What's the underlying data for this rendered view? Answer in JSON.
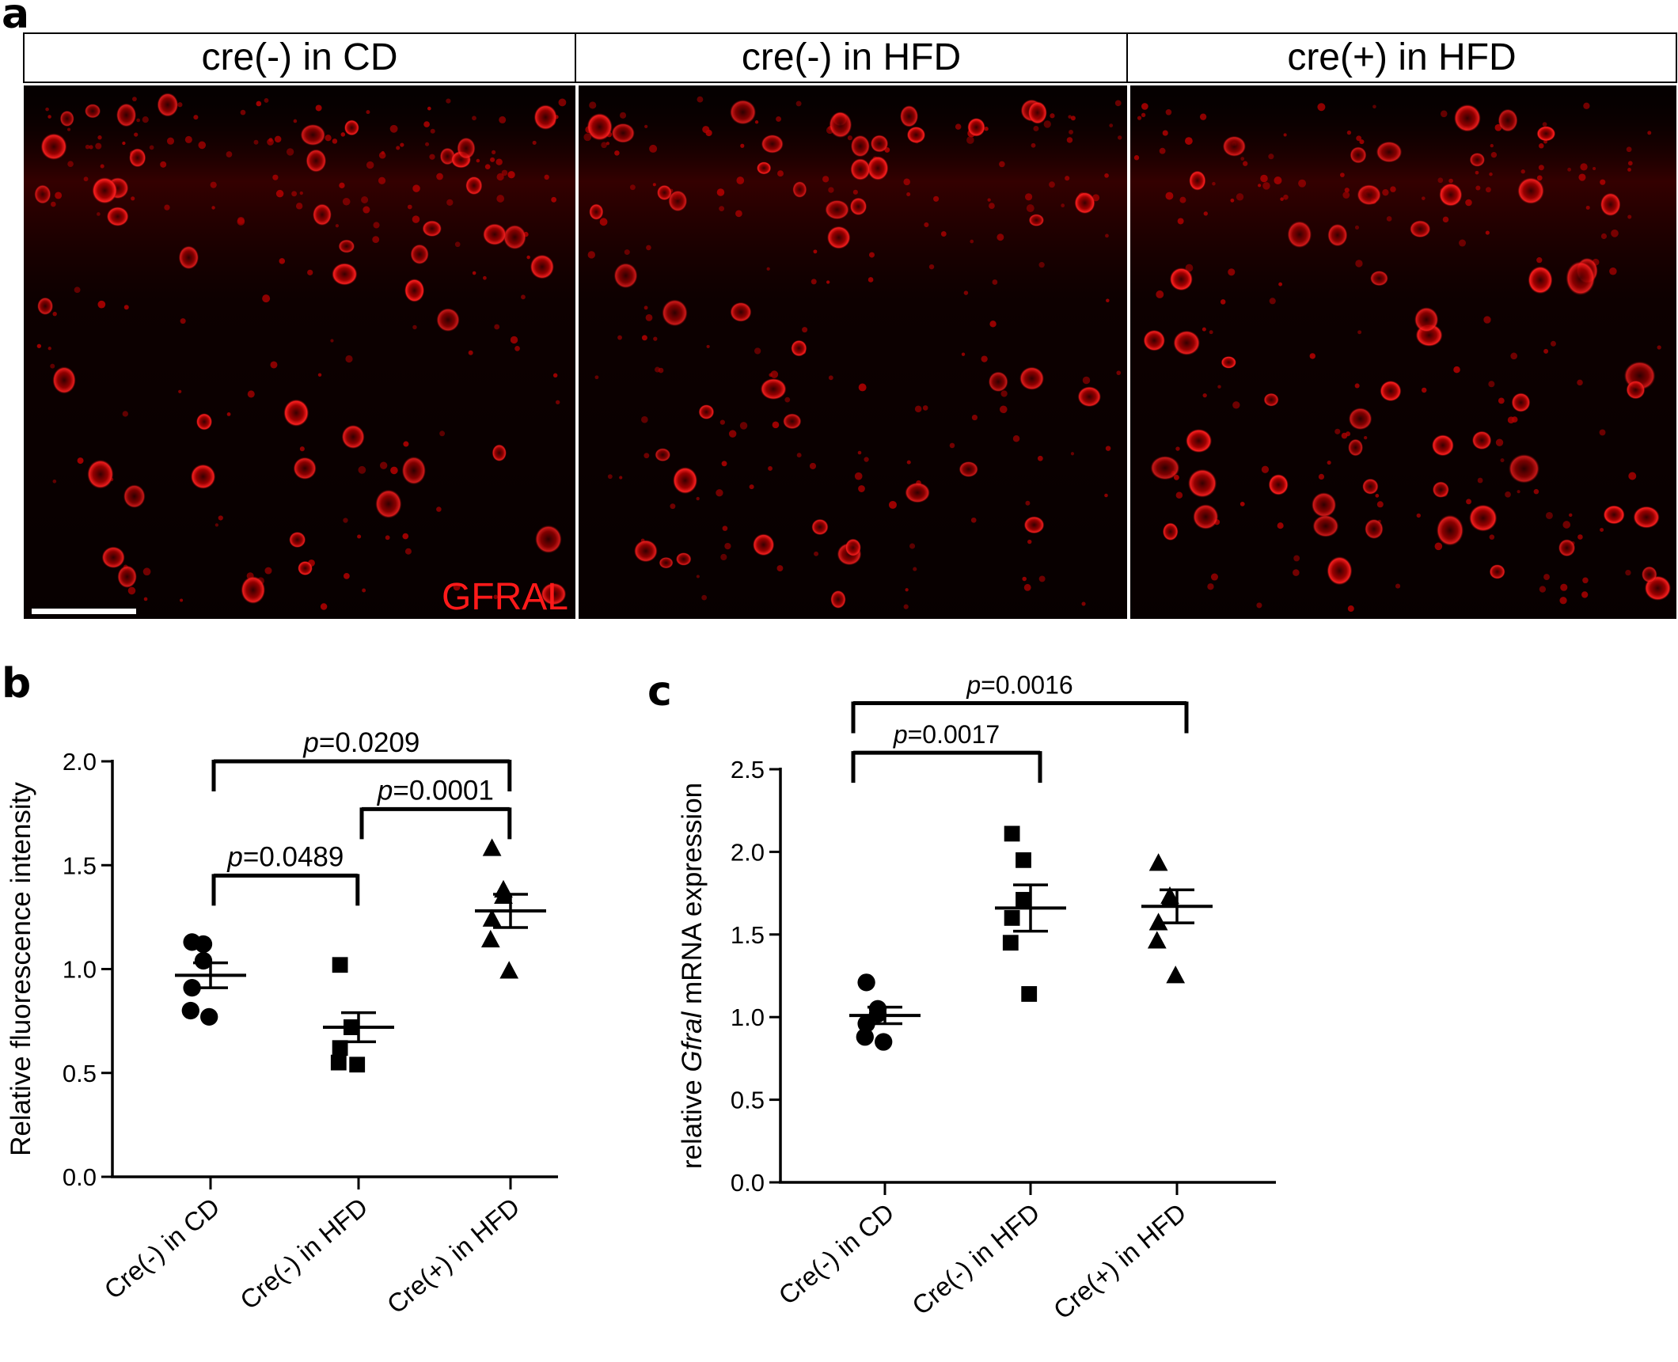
{
  "figure": {
    "panel_a_letter": "a",
    "panel_b_letter": "b",
    "panel_c_letter": "c"
  },
  "micrographs": {
    "stain_label": "GFRAL",
    "stain_color": "#ff1a1a",
    "headers": [
      "cre(-) in CD",
      "cre(-) in HFD",
      "cre(+) in HFD"
    ]
  },
  "chart_data": [
    {
      "type": "scatter",
      "panel": "b",
      "title": "",
      "ylabel": "Relative fluorescence intensity",
      "xlabel": "",
      "ylim": [
        0,
        2.0
      ],
      "yticks": [
        0.0,
        0.5,
        1.0,
        1.5,
        2.0
      ],
      "ytick_labels": [
        "0.0",
        "0.5",
        "1.0",
        "1.5",
        "2.0"
      ],
      "categories": [
        "Cre(-) in CD",
        "Cre(-) in HFD",
        "Cre(+) in HFD"
      ],
      "series": [
        {
          "marker": "circle",
          "values": [
            1.13,
            1.12,
            1.04,
            0.91,
            0.8,
            0.77
          ],
          "mean": 0.97,
          "sem": 0.06
        },
        {
          "marker": "square",
          "values": [
            1.02,
            0.72,
            0.72,
            0.62,
            0.55,
            0.54
          ],
          "mean": 0.72,
          "sem": 0.07
        },
        {
          "marker": "triangle",
          "values": [
            1.58,
            1.38,
            1.35,
            1.24,
            1.14,
            0.99
          ],
          "mean": 1.28,
          "sem": 0.08
        }
      ],
      "comparisons": [
        {
          "from": 0,
          "to": 2,
          "y": 2.0,
          "p_prefix": "p",
          "p_value": "=0.0209"
        },
        {
          "from": 1,
          "to": 2,
          "y": 1.77,
          "p_prefix": "p",
          "p_value": "=0.0001"
        },
        {
          "from": 0,
          "to": 1,
          "y": 1.45,
          "p_prefix": "p",
          "p_value": "=0.0489"
        }
      ]
    },
    {
      "type": "scatter",
      "panel": "c",
      "title": "",
      "ylabel_pre": "relative ",
      "ylabel_gene": "Gfral",
      "ylabel_post": " mRNA expression",
      "xlabel": "",
      "ylim": [
        0,
        2.5
      ],
      "yticks": [
        0.0,
        0.5,
        1.0,
        1.5,
        2.0,
        2.5
      ],
      "ytick_labels": [
        "0.0",
        "0.5",
        "1.0",
        "1.5",
        "2.0",
        "2.5"
      ],
      "categories": [
        "Cre(-) in CD",
        "Cre(-) in HFD",
        "Cre(+) in HFD"
      ],
      "series": [
        {
          "marker": "circle",
          "values": [
            1.21,
            1.05,
            1.02,
            0.96,
            0.88,
            0.85
          ],
          "mean": 1.01,
          "sem": 0.05
        },
        {
          "marker": "square",
          "values": [
            2.11,
            1.95,
            1.71,
            1.6,
            1.45,
            1.14
          ],
          "mean": 1.66,
          "sem": 0.14
        },
        {
          "marker": "triangle",
          "values": [
            1.93,
            1.73,
            1.71,
            1.57,
            1.46,
            1.25
          ],
          "mean": 1.67,
          "sem": 0.1
        }
      ],
      "comparisons": [
        {
          "from": 0,
          "to": 1,
          "y": 2.6,
          "p_prefix": "p",
          "p_value": "=0.0017"
        },
        {
          "from": 0,
          "to": 2,
          "y": 2.9,
          "p_prefix": "p",
          "p_value": "=0.0016"
        }
      ]
    }
  ]
}
